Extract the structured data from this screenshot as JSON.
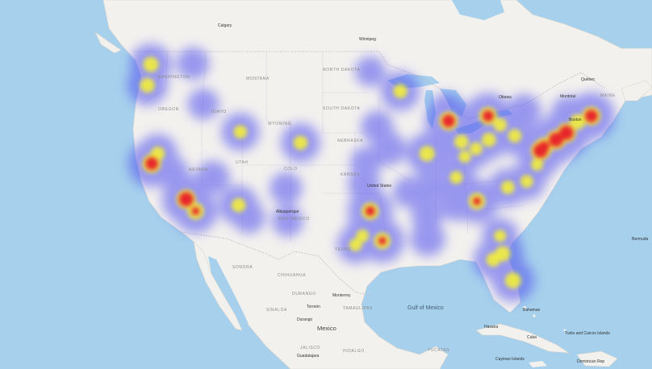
{
  "map": {
    "style": "light road basemap with heatmap overlay",
    "colors": {
      "ocean": "#a6d0ec",
      "land": "#f3f1ee",
      "land_alt": "#eceae5",
      "border": "#c8c0cc",
      "heat_low": "#4f4ff0",
      "heat_mid": "#f2ee3a",
      "heat_high": "#e8262a"
    },
    "labels": {
      "countries": [
        "Mexico"
      ],
      "water": [
        "Gulf of Mexico"
      ],
      "states": [
        "WASHINGTON",
        "OREGON",
        "IDAHO",
        "MONTANA",
        "WYOMING",
        "NEVADA",
        "UTAH",
        "COLO",
        "NEW MEXICO",
        "NORTH DAKOTA",
        "SOUTH DAKOTA",
        "NEBRASKA",
        "KANSAS",
        "TEXAS",
        "MAINE",
        "SONORA",
        "CHIHUAHUA",
        "DURANGO",
        "SINALOA",
        "TAMAULIPAS",
        "JALISCO",
        "HIDALGO",
        "YUCATAN"
      ],
      "cities": [
        "Calgary",
        "Winnipeg",
        "Ottawa",
        "Montréal",
        "Québec",
        "Boston",
        "Torreón",
        "Monterrey",
        "Durango",
        "Guadalajara",
        "Bahamas",
        "Havana",
        "Cuba",
        "Cayman Islands",
        "Dominican Rep",
        "Turks and Caicos Islands",
        "Bermuda",
        "United States",
        "Albuquerque"
      ]
    },
    "heat_points": [
      {
        "name": "Seattle",
        "lon": -122.3,
        "lat": 47.6,
        "intensity": 0.7
      },
      {
        "name": "Portland",
        "lon": -122.7,
        "lat": 45.5,
        "intensity": 0.65
      },
      {
        "name": "Spokane",
        "lon": -117.4,
        "lat": 47.7,
        "intensity": 0.3
      },
      {
        "name": "Boise",
        "lon": -116.2,
        "lat": 43.6,
        "intensity": 0.25
      },
      {
        "name": "San Francisco",
        "lon": -122.2,
        "lat": 37.6,
        "intensity": 0.95
      },
      {
        "name": "Sacramento",
        "lon": -121.5,
        "lat": 38.6,
        "intensity": 0.6
      },
      {
        "name": "Fresno",
        "lon": -119.8,
        "lat": 36.7,
        "intensity": 0.3
      },
      {
        "name": "Las Vegas",
        "lon": -115.1,
        "lat": 36.2,
        "intensity": 0.35
      },
      {
        "name": "Los Angeles",
        "lon": -118.2,
        "lat": 34.0,
        "intensity": 1.0
      },
      {
        "name": "San Diego",
        "lon": -117.1,
        "lat": 32.8,
        "intensity": 0.8
      },
      {
        "name": "Phoenix",
        "lon": -112.1,
        "lat": 33.4,
        "intensity": 0.6
      },
      {
        "name": "Tucson",
        "lon": -110.9,
        "lat": 32.2,
        "intensity": 0.3
      },
      {
        "name": "Salt Lake City",
        "lon": -111.9,
        "lat": 40.8,
        "intensity": 0.55
      },
      {
        "name": "Denver",
        "lon": -104.9,
        "lat": 39.7,
        "intensity": 0.6
      },
      {
        "name": "Albuquerque",
        "lon": -106.6,
        "lat": 35.1,
        "intensity": 0.3
      },
      {
        "name": "El Paso",
        "lon": -106.4,
        "lat": 31.8,
        "intensity": 0.25
      },
      {
        "name": "Minneapolis",
        "lon": -93.3,
        "lat": 44.9,
        "intensity": 0.6
      },
      {
        "name": "Fargo",
        "lon": -96.8,
        "lat": 46.9,
        "intensity": 0.2
      },
      {
        "name": "Omaha",
        "lon": -96.0,
        "lat": 41.3,
        "intensity": 0.3
      },
      {
        "name": "Kansas City",
        "lon": -94.6,
        "lat": 39.1,
        "intensity": 0.35
      },
      {
        "name": "Wichita",
        "lon": -97.3,
        "lat": 37.7,
        "intensity": 0.25
      },
      {
        "name": "Oklahoma City",
        "lon": -97.5,
        "lat": 35.5,
        "intensity": 0.3
      },
      {
        "name": "Dallas",
        "lon": -96.8,
        "lat": 32.8,
        "intensity": 0.85
      },
      {
        "name": "Austin",
        "lon": -97.7,
        "lat": 30.3,
        "intensity": 0.5
      },
      {
        "name": "San Antonio",
        "lon": -98.5,
        "lat": 29.4,
        "intensity": 0.5
      },
      {
        "name": "Houston",
        "lon": -95.4,
        "lat": 29.8,
        "intensity": 0.8
      },
      {
        "name": "New Orleans",
        "lon": -90.1,
        "lat": 30.0,
        "intensity": 0.4
      },
      {
        "name": "Memphis",
        "lon": -90.0,
        "lat": 35.1,
        "intensity": 0.35
      },
      {
        "name": "St. Louis",
        "lon": -90.2,
        "lat": 38.6,
        "intensity": 0.7
      },
      {
        "name": "Chicago",
        "lon": -87.7,
        "lat": 41.9,
        "intensity": 0.95
      },
      {
        "name": "Milwaukee",
        "lon": -87.9,
        "lat": 43.0,
        "intensity": 0.4
      },
      {
        "name": "Indianapolis",
        "lon": -86.2,
        "lat": 39.8,
        "intensity": 0.6
      },
      {
        "name": "Detroit",
        "lon": -83.1,
        "lat": 42.4,
        "intensity": 0.9
      },
      {
        "name": "Columbus",
        "lon": -83.0,
        "lat": 40.0,
        "intensity": 0.6
      },
      {
        "name": "Cincinnati",
        "lon": -84.5,
        "lat": 39.1,
        "intensity": 0.5
      },
      {
        "name": "Cleveland",
        "lon": -81.7,
        "lat": 41.5,
        "intensity": 0.55
      },
      {
        "name": "Pittsburgh",
        "lon": -80.0,
        "lat": 40.4,
        "intensity": 0.55
      },
      {
        "name": "Louisville",
        "lon": -85.8,
        "lat": 38.3,
        "intensity": 0.45
      },
      {
        "name": "Nashville",
        "lon": -86.8,
        "lat": 36.2,
        "intensity": 0.5
      },
      {
        "name": "Atlanta",
        "lon": -84.4,
        "lat": 33.8,
        "intensity": 0.8
      },
      {
        "name": "Birmingham",
        "lon": -86.8,
        "lat": 33.5,
        "intensity": 0.35
      },
      {
        "name": "Charlotte",
        "lon": -80.8,
        "lat": 35.2,
        "intensity": 0.55
      },
      {
        "name": "Raleigh",
        "lon": -78.6,
        "lat": 35.8,
        "intensity": 0.5
      },
      {
        "name": "Richmond",
        "lon": -77.4,
        "lat": 37.5,
        "intensity": 0.45
      },
      {
        "name": "Washington DC",
        "lon": -77.0,
        "lat": 38.9,
        "intensity": 1.0
      },
      {
        "name": "Baltimore",
        "lon": -76.6,
        "lat": 39.3,
        "intensity": 0.9
      },
      {
        "name": "Philadelphia",
        "lon": -75.2,
        "lat": 40.0,
        "intensity": 1.0
      },
      {
        "name": "New York",
        "lon": -74.0,
        "lat": 40.7,
        "intensity": 1.0
      },
      {
        "name": "Hartford",
        "lon": -72.7,
        "lat": 41.8,
        "intensity": 0.7
      },
      {
        "name": "Boston",
        "lon": -71.1,
        "lat": 42.4,
        "intensity": 0.95
      },
      {
        "name": "Buffalo",
        "lon": -78.9,
        "lat": 42.9,
        "intensity": 0.35
      },
      {
        "name": "Albany",
        "lon": -73.8,
        "lat": 42.7,
        "intensity": 0.35
      },
      {
        "name": "Jacksonville",
        "lon": -81.7,
        "lat": 30.3,
        "intensity": 0.45
      },
      {
        "name": "Orlando",
        "lon": -81.4,
        "lat": 28.5,
        "intensity": 0.7
      },
      {
        "name": "Tampa",
        "lon": -82.5,
        "lat": 27.9,
        "intensity": 0.6
      },
      {
        "name": "Miami",
        "lon": -80.2,
        "lat": 25.8,
        "intensity": 0.75
      },
      {
        "name": "Jackson",
        "lon": -90.2,
        "lat": 32.3,
        "intensity": 0.25
      },
      {
        "name": "Little Rock",
        "lon": -92.3,
        "lat": 34.7,
        "intensity": 0.25
      }
    ]
  }
}
